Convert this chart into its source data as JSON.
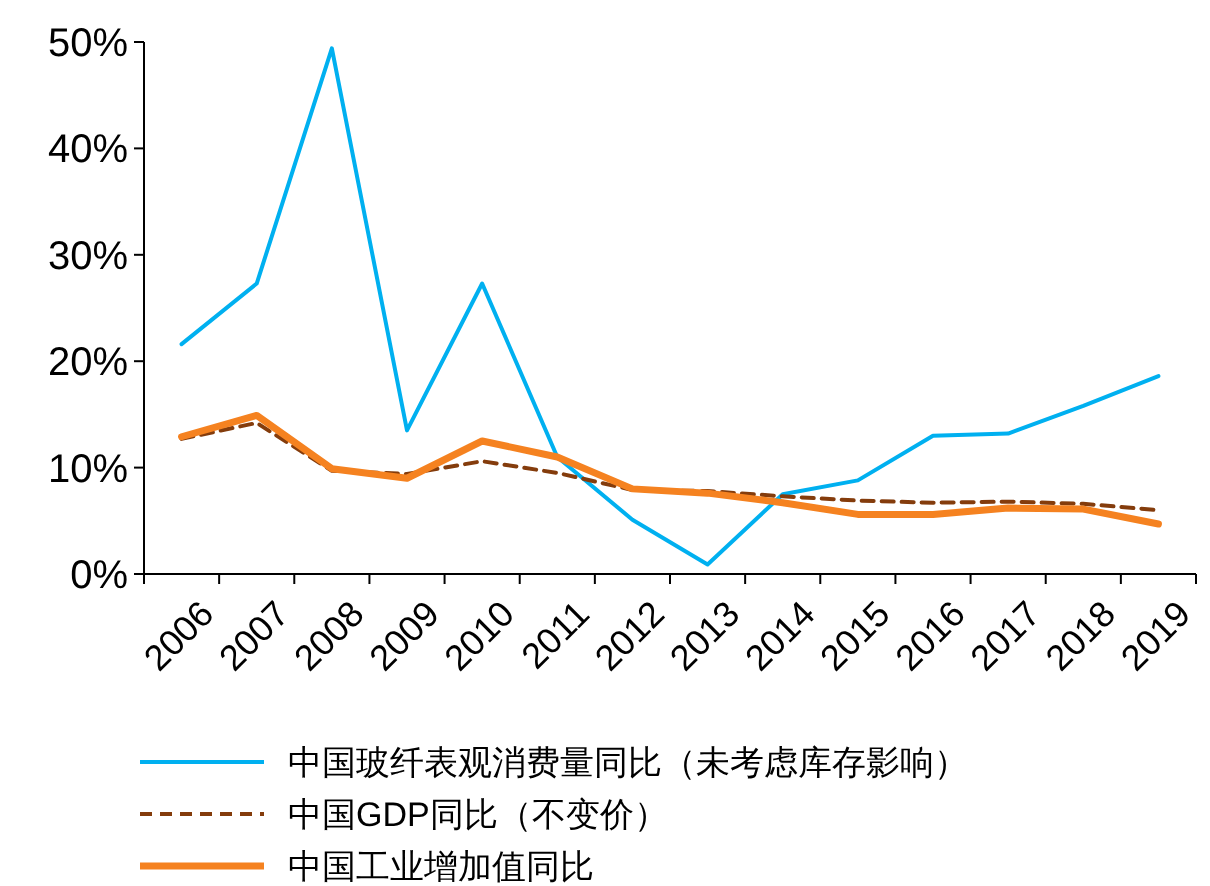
{
  "chart_data": {
    "type": "line",
    "categories": [
      "2006",
      "2007",
      "2008",
      "2009",
      "2010",
      "2011",
      "2012",
      "2013",
      "2014",
      "2015",
      "2016",
      "2017",
      "2018",
      "2019"
    ],
    "series": [
      {
        "name": "中国玻纤表观消费量同比（未考虑库存影响）",
        "color": "#00b0f0",
        "line_style": "solid",
        "values": [
          21.6,
          27.3,
          49.4,
          13.5,
          27.3,
          11.0,
          5.1,
          0.9,
          7.5,
          8.8,
          13.0,
          13.2,
          15.8,
          18.6
        ]
      },
      {
        "name": "中国GDP同比（不变价）",
        "color": "#843c0c",
        "line_style": "dashed",
        "values": [
          12.7,
          14.2,
          9.7,
          9.4,
          10.6,
          9.5,
          7.9,
          7.8,
          7.3,
          6.9,
          6.7,
          6.8,
          6.6,
          6.0
        ]
      },
      {
        "name": "中国工业增加值同比",
        "color": "#f58220",
        "line_style": "solid",
        "values": [
          12.9,
          14.9,
          9.9,
          9.0,
          12.5,
          11.0,
          8.0,
          7.6,
          6.7,
          5.6,
          5.6,
          6.2,
          6.1,
          4.7
        ]
      }
    ],
    "ylim": [
      0,
      50
    ],
    "yticks": [
      {
        "value": 0,
        "label": "0%"
      },
      {
        "value": 10,
        "label": "10%"
      },
      {
        "value": 20,
        "label": "20%"
      },
      {
        "value": 30,
        "label": "30%"
      },
      {
        "value": 40,
        "label": "40%"
      },
      {
        "value": 50,
        "label": "50%"
      }
    ],
    "grid": false,
    "legend": "bottom",
    "marker": "none"
  }
}
